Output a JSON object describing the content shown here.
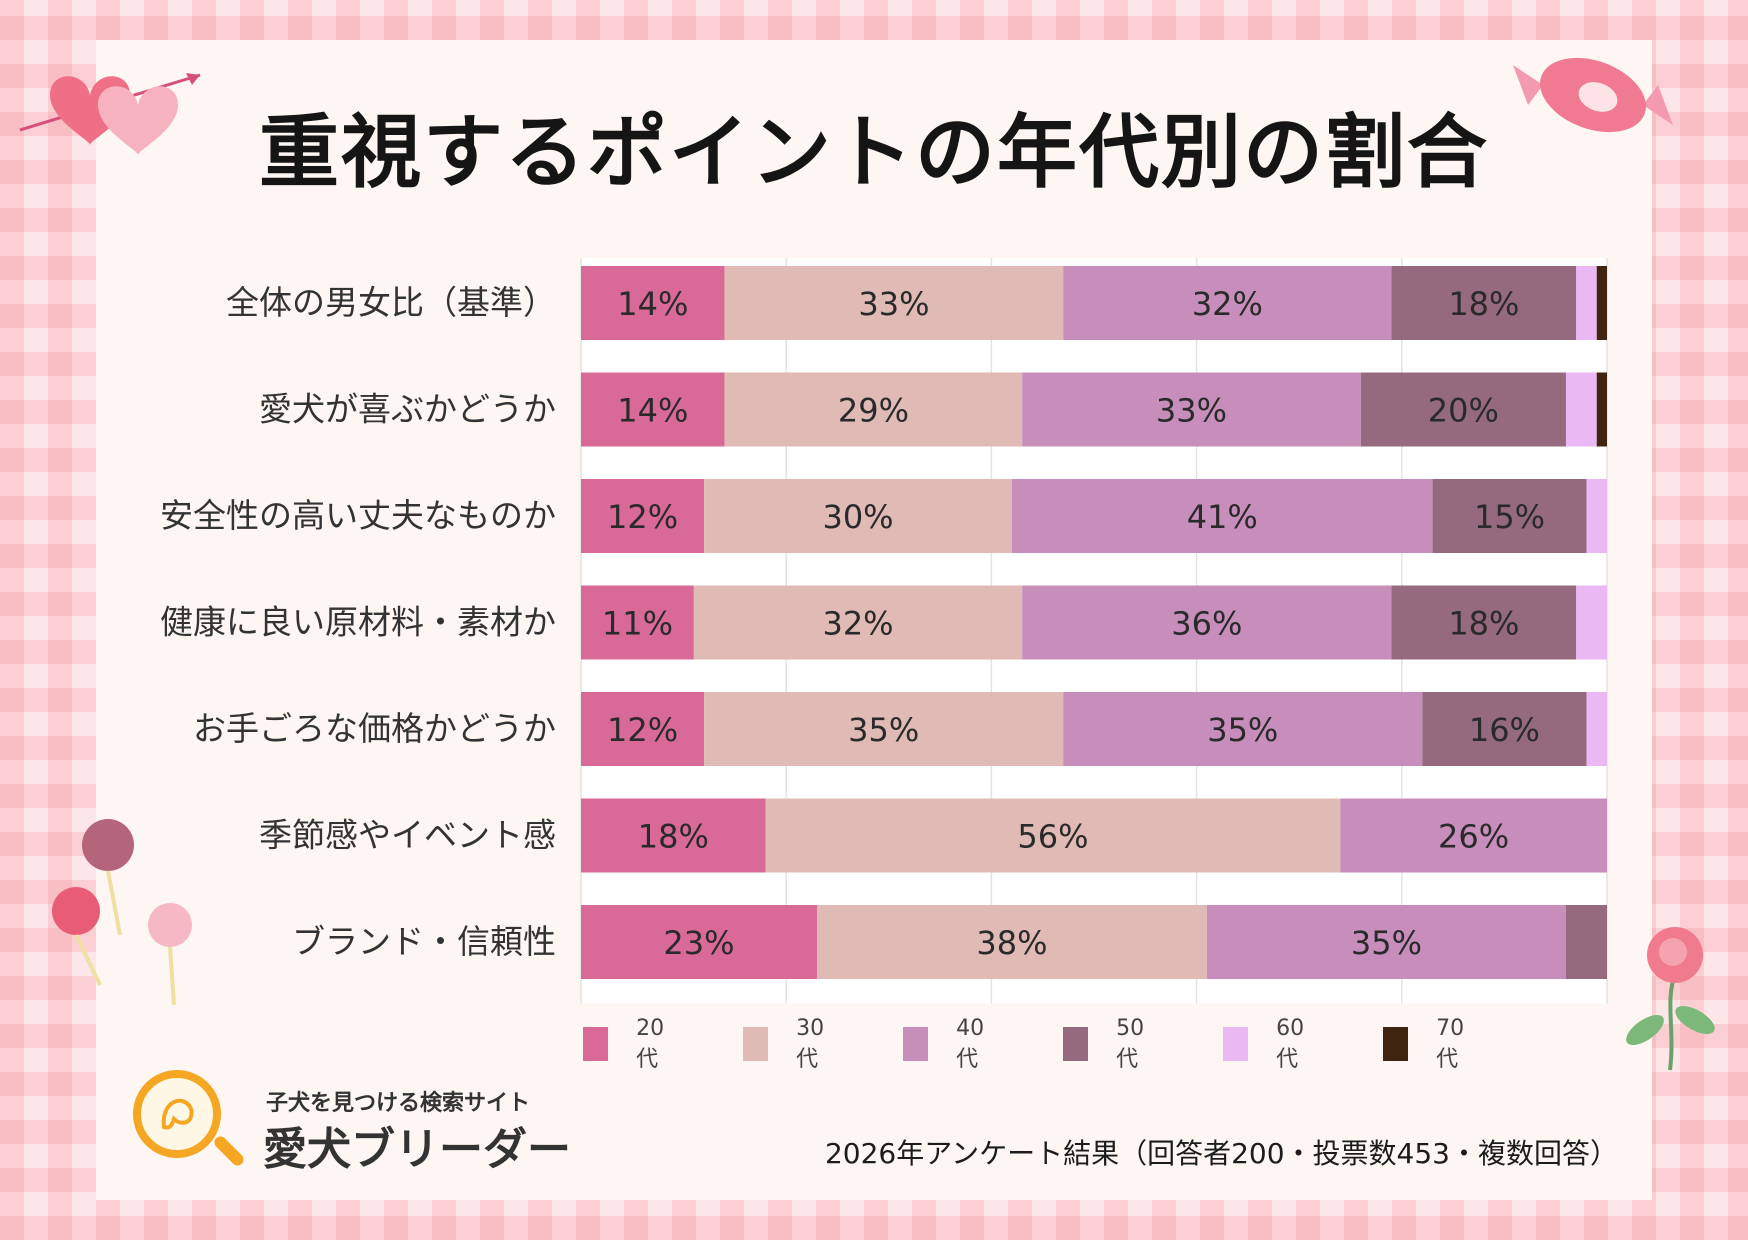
{
  "title": "重視するポイントの年代別の割合",
  "footer_note": "2026年アンケート結果（回答者200・投票数453・複数回答）",
  "logo": {
    "subtitle": "子犬を見つける検索サイト",
    "name": "愛犬ブリーダー"
  },
  "colors": {
    "20代": "#d96a97",
    "30代": "#e0bab5",
    "40代": "#c88ebb",
    "50代": "#956a7e",
    "60代": "#eab8f2",
    "70代": "#3f2410"
  },
  "chart_data": {
    "type": "bar",
    "orientation": "horizontal",
    "stacked": true,
    "xlim": [
      0,
      100
    ],
    "legend_position": "bottom",
    "categories": [
      "全体の男女比（基準）",
      "愛犬が喜ぶかどうか",
      "安全性の高い丈夫なものか",
      "健康に良い原材料・素材か",
      "お手ごろな価格かどうか",
      "季節感やイベント感",
      "ブランド・信頼性"
    ],
    "series": [
      {
        "name": "20代",
        "values": [
          14,
          14,
          12,
          11,
          12,
          18,
          23
        ],
        "labels": [
          "14%",
          "14%",
          "12%",
          "11%",
          "12%",
          "18%",
          "23%"
        ]
      },
      {
        "name": "30代",
        "values": [
          33,
          29,
          30,
          32,
          35,
          56,
          38
        ],
        "labels": [
          "33%",
          "29%",
          "30%",
          "32%",
          "35%",
          "56%",
          "38%"
        ]
      },
      {
        "name": "40代",
        "values": [
          32,
          33,
          41,
          36,
          35,
          26,
          35
        ],
        "labels": [
          "32%",
          "33%",
          "41%",
          "36%",
          "35%",
          "26%",
          "35%"
        ]
      },
      {
        "name": "50代",
        "values": [
          18,
          20,
          15,
          18,
          16,
          0,
          4
        ],
        "labels": [
          "18%",
          "20%",
          "15%",
          "18%",
          "16%",
          "",
          ""
        ]
      },
      {
        "name": "60代",
        "values": [
          2,
          3,
          2,
          3,
          2,
          0,
          0
        ],
        "labels": [
          "",
          "",
          "",
          "",
          "",
          "",
          ""
        ]
      },
      {
        "name": "70代",
        "values": [
          1,
          1,
          0,
          0,
          0,
          0,
          0
        ],
        "labels": [
          "",
          "",
          "",
          "",
          "",
          "",
          ""
        ]
      }
    ]
  }
}
